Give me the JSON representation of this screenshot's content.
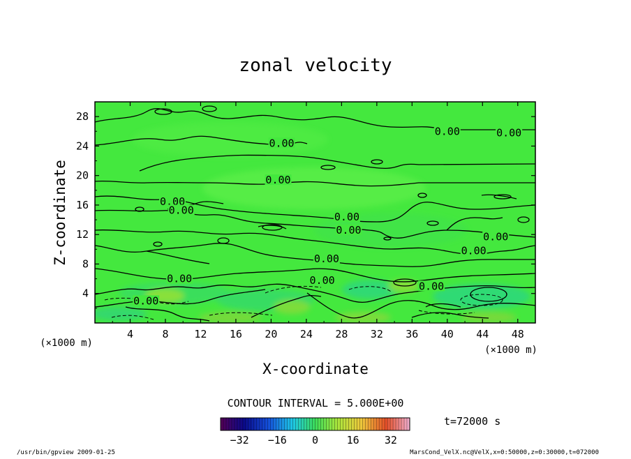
{
  "chart_data": {
    "type": "heatmap",
    "title": "zonal velocity",
    "xlabel": "X-coordinate",
    "ylabel": "Z-coordinate",
    "x_unit": "(×1000 m)",
    "y_unit": "(×1000 m)",
    "xlim": [
      0,
      50
    ],
    "ylim": [
      0,
      30
    ],
    "x_ticks": [
      "4",
      "8",
      "12",
      "16",
      "20",
      "24",
      "28",
      "32",
      "36",
      "40",
      "44",
      "48"
    ],
    "y_ticks": [
      "4",
      "8",
      "12",
      "16",
      "20",
      "24",
      "28"
    ],
    "contour_interval_text": "CONTOUR INTERVAL = 5.000E+00",
    "contour_labels": [
      {
        "text": "0.00",
        "x": 40.0,
        "z": 25.8
      },
      {
        "text": "0.00",
        "x": 47.0,
        "z": 25.6
      },
      {
        "text": "0.00",
        "x": 21.2,
        "z": 24.2
      },
      {
        "text": "0.00",
        "x": 20.8,
        "z": 19.2
      },
      {
        "text": "0.00",
        "x": 8.8,
        "z": 16.3
      },
      {
        "text": "0.00",
        "x": 9.8,
        "z": 15.1
      },
      {
        "text": "0.00",
        "x": 28.6,
        "z": 14.2
      },
      {
        "text": "0.00",
        "x": 28.8,
        "z": 12.4
      },
      {
        "text": "0.00",
        "x": 45.5,
        "z": 11.5
      },
      {
        "text": "0.00",
        "x": 43.0,
        "z": 9.6
      },
      {
        "text": "0.00",
        "x": 26.3,
        "z": 8.5
      },
      {
        "text": "0.00",
        "x": 9.6,
        "z": 5.8
      },
      {
        "text": "0.00",
        "x": 25.8,
        "z": 5.6
      },
      {
        "text": "0.00",
        "x": 38.2,
        "z": 4.8
      },
      {
        "text": "0.00",
        "x": 5.8,
        "z": 2.8
      }
    ],
    "colorbar": {
      "min": -40,
      "max": 40,
      "ticks": [
        "−32",
        "−16",
        "0",
        "16",
        "32"
      ],
      "tick_values": [
        -32,
        -16,
        0,
        16,
        32
      ]
    },
    "time_label": "t=72000 s",
    "grid": false,
    "legend": "bottom-center"
  },
  "footer": {
    "left": "/usr/bin/gpview  2009-01-25",
    "right": "MarsCond_VelX.nc@VelX,x=0:50000,z=0:30000,t=072000"
  },
  "colors": {
    "field_base": "#44e83e",
    "contour_line": "#000000"
  }
}
